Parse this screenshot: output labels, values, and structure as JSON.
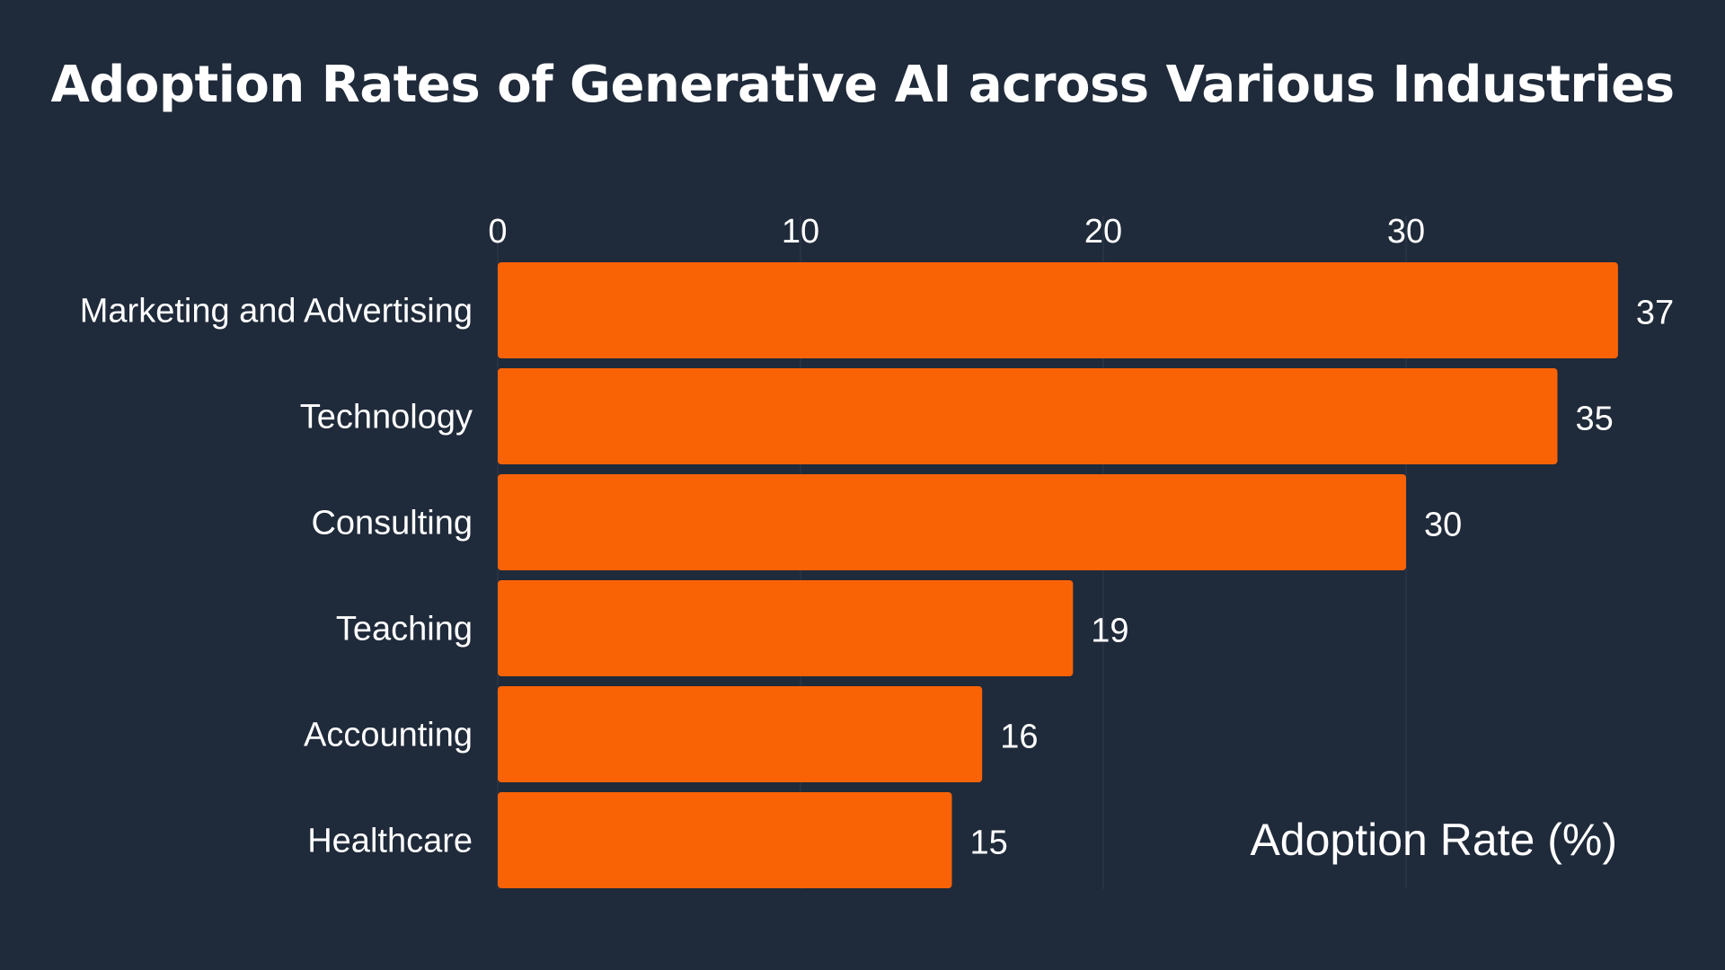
{
  "chart_data": {
    "type": "bar",
    "orientation": "horizontal",
    "title": "Adoption Rates of Generative AI across Various Industries",
    "xlabel": "Adoption Rate (%)",
    "ylabel": "",
    "categories": [
      "Marketing and Advertising",
      "Technology",
      "Consulting",
      "Teaching",
      "Accounting",
      "Healthcare"
    ],
    "values": [
      37,
      35,
      30,
      19,
      16,
      15
    ],
    "xlim": [
      0,
      37
    ],
    "xticks": [
      0,
      10,
      20,
      30
    ],
    "xtick_labels": [
      "0",
      "10",
      "20",
      "30"
    ],
    "value_labels": [
      "37",
      "35",
      "30",
      "19",
      "16",
      "15"
    ],
    "grid": true,
    "x_axis_position": "top",
    "colors": {
      "background": "#1f2a3a",
      "bar": "#f96306",
      "text": "#ffffff",
      "grid": "#2a3546"
    }
  }
}
